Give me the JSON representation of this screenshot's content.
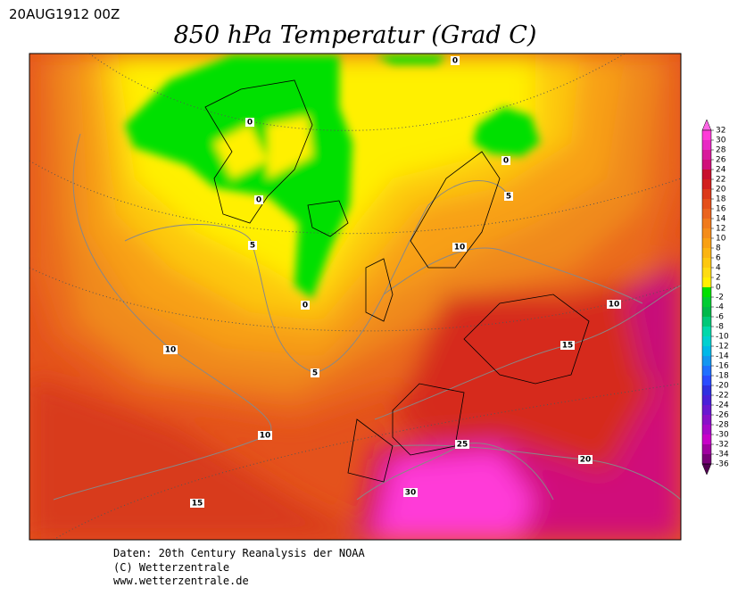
{
  "header": {
    "run": "20AUG1912 00Z",
    "title": "850 hPa Temperatur (Grad C)"
  },
  "colorbar": {
    "ticks": [
      32,
      30,
      28,
      26,
      24,
      22,
      20,
      18,
      16,
      14,
      12,
      10,
      8,
      6,
      4,
      2,
      0,
      -2,
      -4,
      -6,
      -8,
      -10,
      -12,
      -14,
      -16,
      -18,
      -20,
      -22,
      -24,
      -26,
      -28,
      -30,
      -32,
      -34,
      -36
    ],
    "colors": [
      "#ff66e6",
      "#ff3ad8",
      "#e829c4",
      "#d81a9c",
      "#d0107a",
      "#c8102e",
      "#d2201e",
      "#dc3a1a",
      "#e4501a",
      "#ea641e",
      "#f07a1c",
      "#f48c1a",
      "#f8a014",
      "#fbb412",
      "#fdc810",
      "#fedc12",
      "#fff000",
      "#00e000",
      "#00cc33",
      "#00b84a",
      "#00c878",
      "#00d8aa",
      "#00d0d0",
      "#00b8e8",
      "#1496f0",
      "#2070ff",
      "#2a4cff",
      "#3030e0",
      "#4a20d8",
      "#6a18d0",
      "#8a10c8",
      "#a808c8",
      "#c800c8",
      "#a000a0",
      "#780078",
      "#500050"
    ]
  },
  "contour_labels": [
    "0",
    "0",
    "0",
    "0",
    "0",
    "5",
    "5",
    "5",
    "10",
    "10",
    "10",
    "10",
    "15",
    "15",
    "20",
    "25",
    "30"
  ],
  "footer": [
    "Daten: 20th Century Reanalysis der NOAA",
    "(C) Wetterzentrale",
    "www.wetterzentrale.de"
  ]
}
